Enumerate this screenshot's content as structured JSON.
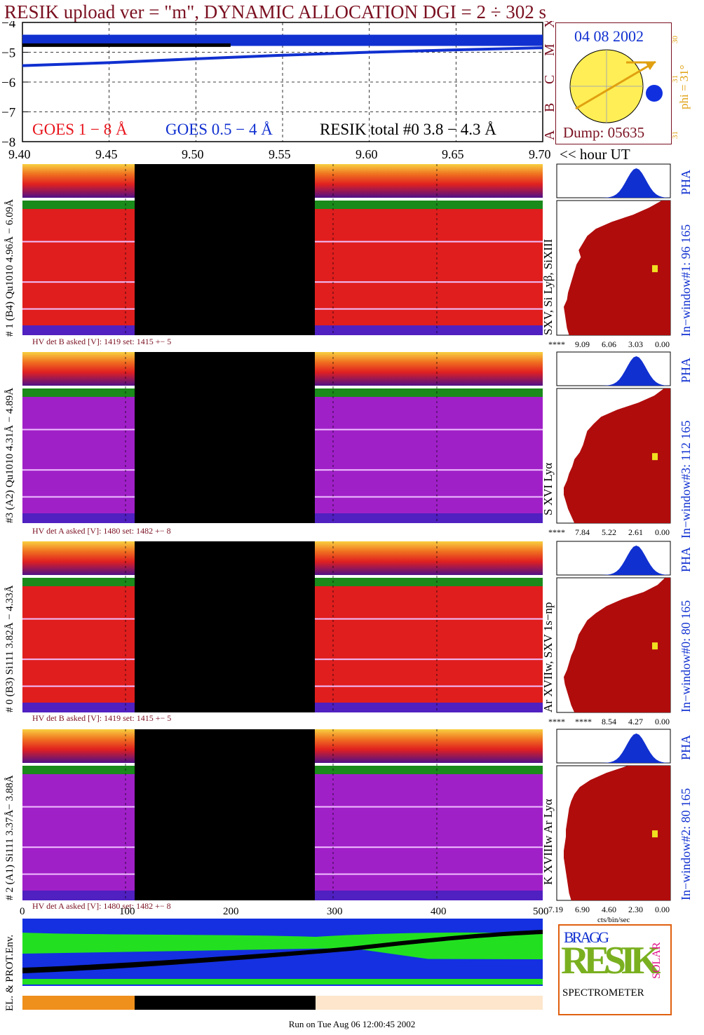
{
  "title": "RESIK upload ver = \"m\", DYNAMIC ALLOCATION  DGI =   2 ÷ 302 s",
  "goes": {
    "y_ticks": [
      "−4",
      "−5",
      "−6",
      "−7",
      "−8"
    ],
    "class_labels": [
      "X",
      "M",
      "C",
      "B",
      "A"
    ],
    "legend": {
      "goes_long": "GOES 1 − 8 Å",
      "goes_short": "GOES 0.5 − 4 Å",
      "resik_total": "RESIK total #0  3.8 − 4.3 Å"
    },
    "colors": {
      "goes_long": "#e8141c",
      "goes_short": "#1030d0",
      "resik": "#000000"
    }
  },
  "sun": {
    "date": "04 08 2002",
    "phi_label": "phi = 31°",
    "ticks": [
      "30",
      "31",
      "31"
    ],
    "dump": "Dump: 05635"
  },
  "time_axis": {
    "ticks": [
      "9.40",
      "9.45",
      "9.50",
      "9.55",
      "9.60",
      "9.65",
      "9.70"
    ],
    "unit_label": "<< hour UT"
  },
  "detectors": [
    {
      "id": "det1",
      "label": "# 1 (B4) Qu1010 4.96Å − 6.09Å",
      "lines": "SXV, Si Lyβ, SiXIII",
      "hv": "HV det B asked [V]:  1419 set:  1415 +−   5",
      "window": "In−window#1:   96 165",
      "pha": "PHA",
      "hist_ticks": [
        "****",
        "9.09",
        "6.06",
        "3.03",
        "0.00"
      ],
      "background": "red",
      "hist_profile": [
        0.08,
        0.2,
        0.35,
        0.55,
        0.7,
        0.78,
        0.82,
        0.86,
        0.84,
        0.88,
        0.9,
        0.92,
        0.94,
        0.96,
        0.97,
        1.0,
        0.99,
        0.98,
        0.97,
        0.95
      ]
    },
    {
      "id": "det3",
      "label": "#3 (A2) Qu1010  4.31Å − 4.89Å",
      "lines": "S XVI Lyα",
      "hv": "HV det A asked [V]:  1480 set:  1482 +−   8",
      "window": "In−window#3:   112 165",
      "pha": "PHA",
      "hist_ticks": [
        "****",
        "7.84",
        "5.22",
        "2.61",
        "0.00"
      ],
      "background": "purple",
      "hist_profile": [
        0.06,
        0.15,
        0.3,
        0.5,
        0.65,
        0.72,
        0.78,
        0.8,
        0.82,
        0.85,
        0.9,
        0.92,
        0.95,
        0.97,
        1.0,
        1.0,
        0.98,
        0.96,
        0.93,
        0.9
      ]
    },
    {
      "id": "det0",
      "label": "# 0 (B3) Si111  3.82Å − 4.33Å",
      "lines": "Ar XVIIw,  SXV 1s−np",
      "hv": "HV det B asked [V]:  1419 set:  1415 +−   5",
      "window": "In−window#0:   80 165",
      "pha": "PHA",
      "hist_ticks": [
        "****",
        "****",
        "8.54",
        "4.27",
        "0.00"
      ],
      "background": "red",
      "hist_profile": [
        0.05,
        0.12,
        0.25,
        0.45,
        0.6,
        0.7,
        0.78,
        0.82,
        0.86,
        0.88,
        0.9,
        0.93,
        0.95,
        0.97,
        1.0,
        0.99,
        0.97,
        0.95,
        0.93,
        0.9
      ]
    },
    {
      "id": "det2",
      "label": "# 2 (A1) Si111  3.37Å−  3.88Å",
      "lines": "K XVIIIw  Ar Lyα",
      "hv": "HV det A asked [V]:  1480 set:  1482 +−   8",
      "window": "In−window#2:   80 165",
      "pha": "PHA",
      "hist_ticks": [
        "7.19",
        "6.90",
        "4.60",
        "2.30",
        "0.00"
      ],
      "hist_unit": "cts/bin/sec",
      "background": "purple",
      "hist_profile": [
        0.4,
        0.6,
        0.75,
        0.85,
        0.9,
        0.93,
        0.95,
        0.96,
        0.97,
        0.98,
        0.98,
        0.99,
        1.0,
        1.0,
        0.99,
        0.98,
        0.97,
        0.96,
        0.95,
        0.93
      ]
    }
  ],
  "channel_axis": {
    "ticks": [
      "0",
      "100",
      "200",
      "300",
      "400",
      "500"
    ]
  },
  "env": {
    "label": "EL. & PROT.Env."
  },
  "logo": {
    "top": "BRAGG",
    "middle": "RESIK",
    "side": "SOLAR",
    "bottom": "SPECTROMETER"
  },
  "footer": "Run on Tue Aug 06 12:00:45 2002",
  "chart_data": [
    {
      "type": "line",
      "title": "RESIK upload ver = \"m\", DYNAMIC ALLOCATION  DGI =   2 ÷ 302 s",
      "xlabel": "<< hour UT",
      "xlim": [
        9.4,
        9.7
      ],
      "ylim": [
        -8,
        -4
      ],
      "x": [
        9.4,
        9.45,
        9.5,
        9.55,
        9.6,
        9.65,
        9.7
      ],
      "series": [
        {
          "name": "GOES 1 − 8 Å",
          "values": [
            -4.6,
            -4.6,
            -4.6,
            -4.6,
            -4.6,
            -4.6,
            -4.6
          ]
        },
        {
          "name": "GOES 0.5 − 4 Å",
          "values": [
            -5.45,
            -5.35,
            -5.22,
            -5.1,
            -5.0,
            -4.92,
            -4.85
          ]
        },
        {
          "name": "RESIK total #0  3.8 − 4.3 Å",
          "values": [
            -4.75,
            -4.75,
            -4.75,
            null,
            null,
            null,
            null
          ]
        }
      ]
    }
  ]
}
